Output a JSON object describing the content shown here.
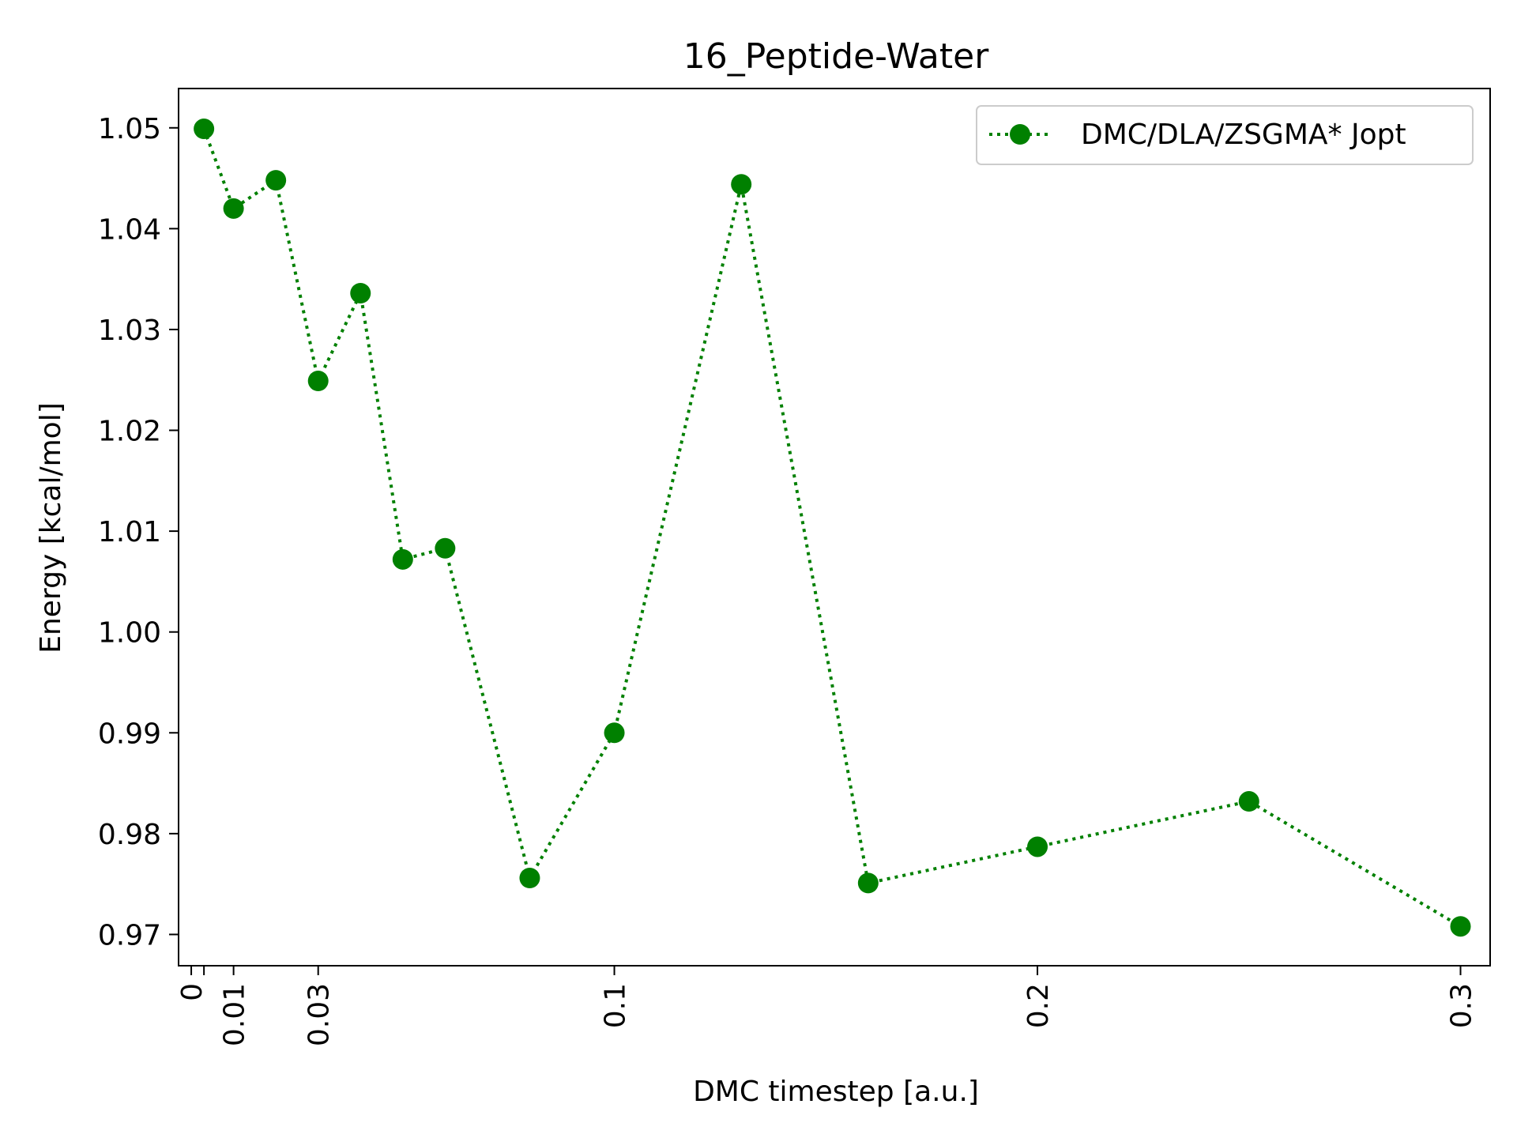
{
  "chart_data": {
    "type": "line",
    "title": "16_Peptide-Water",
    "xlabel": "DMC timestep [a.u.]",
    "ylabel": "Energy [kcal/mol]",
    "xlim": [
      -0.003,
      0.307
    ],
    "ylim": [
      0.9669,
      1.0539
    ],
    "x_ticks": [
      {
        "value": 0,
        "label": "0"
      },
      {
        "value": 0.003,
        "label": ""
      },
      {
        "value": 0.01,
        "label": "0.01"
      },
      {
        "value": 0.03,
        "label": "0.03"
      },
      {
        "value": 0.1,
        "label": "0.1"
      },
      {
        "value": 0.2,
        "label": "0.2"
      },
      {
        "value": 0.3,
        "label": "0.3"
      }
    ],
    "y_ticks": [
      {
        "value": 0.97,
        "label": "0.97"
      },
      {
        "value": 0.98,
        "label": "0.98"
      },
      {
        "value": 0.99,
        "label": "0.99"
      },
      {
        "value": 1.0,
        "label": "1.00"
      },
      {
        "value": 1.01,
        "label": "1.01"
      },
      {
        "value": 1.02,
        "label": "1.02"
      },
      {
        "value": 1.03,
        "label": "1.03"
      },
      {
        "value": 1.04,
        "label": "1.04"
      },
      {
        "value": 1.05,
        "label": "1.05"
      }
    ],
    "grid": false,
    "legend_position": "top-right",
    "series": [
      {
        "name": "DMC/DLA/ZSGMA* Jopt",
        "color": "#008000",
        "line_style": "dotted",
        "marker": "circle",
        "x": [
          0.003,
          0.01,
          0.02,
          0.03,
          0.04,
          0.05,
          0.06,
          0.08,
          0.1,
          0.13,
          0.16,
          0.2,
          0.25,
          0.3
        ],
        "y": [
          1.0499,
          1.042,
          1.0448,
          1.0249,
          1.0336,
          1.0072,
          1.0083,
          0.9756,
          0.99,
          1.0444,
          0.9751,
          0.9787,
          0.9832,
          0.9708
        ]
      }
    ]
  }
}
